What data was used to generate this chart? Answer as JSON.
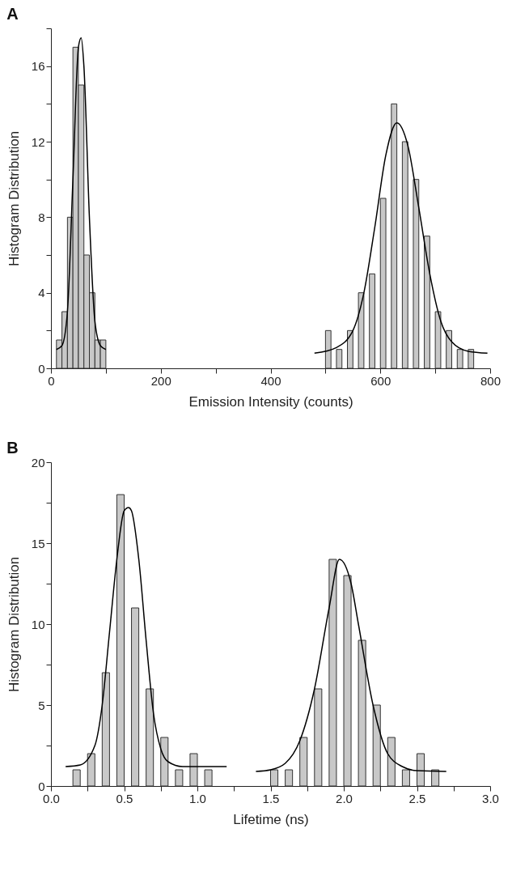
{
  "chart_data": [
    {
      "type": "histogram",
      "title": "A",
      "xlabel": "Emission Intensity (counts)",
      "ylabel": "Histogram Distribution",
      "color": "#c8c8c8",
      "bins": [
        10,
        20,
        30,
        40,
        50,
        60,
        70,
        80,
        90,
        100,
        500,
        510,
        520,
        530,
        540,
        550,
        560,
        570,
        580,
        590,
        600,
        610,
        620,
        630,
        640,
        650,
        660,
        670,
        680,
        690,
        700,
        710,
        720,
        730,
        740,
        750,
        760,
        770
      ],
      "values": [
        1.5,
        3,
        8,
        17,
        15,
        6,
        4,
        1.5,
        1.5,
        null,
        2,
        null,
        1,
        null,
        2,
        null,
        4,
        null,
        5,
        null,
        9,
        null,
        14,
        null,
        12,
        null,
        10,
        null,
        7,
        null,
        3,
        null,
        2,
        null,
        1,
        null,
        1
      ],
      "xlim": [
        0,
        800
      ],
      "ylim": [
        0,
        18
      ],
      "xticks": [
        0,
        {
          "value": 100,
          "label": null
        },
        200,
        {
          "value": 300,
          "label": null
        },
        400,
        {
          "value": 500,
          "label": null
        },
        600,
        {
          "value": 700,
          "label": null
        },
        800
      ],
      "yticks": [
        0,
        {
          "value": 2,
          "label": null
        },
        4,
        {
          "value": 6,
          "label": null
        },
        8,
        {
          "value": 10,
          "label": null
        },
        12,
        {
          "value": 14,
          "label": null
        },
        16,
        {
          "value": 18,
          "label": null
        }
      ],
      "series": [
        {
          "type": "line",
          "color": "#000000",
          "x": [
            10,
            20,
            30,
            40,
            50,
            55,
            60,
            70,
            80,
            90,
            100
          ],
          "values": [
            1.0,
            1.2,
            3,
            10,
            17,
            17.5,
            16,
            8,
            2.5,
            1.2,
            1.0
          ]
        },
        {
          "type": "line",
          "color": "#000000",
          "x": [
            480,
            520,
            550,
            570,
            590,
            610,
            630,
            650,
            670,
            690,
            710,
            730,
            760,
            795
          ],
          "values": [
            0.8,
            1.1,
            2,
            4,
            7.5,
            11.3,
            13,
            11.8,
            8.5,
            5,
            2.5,
            1.4,
            0.9,
            0.8
          ]
        }
      ]
    },
    {
      "type": "histogram",
      "title": "B",
      "xlabel": "Lifetime (ns)",
      "ylabel": "Histogram Distribution",
      "color": "#c8c8c8",
      "bins": [
        0.15,
        0.2,
        0.25,
        0.3,
        0.35,
        0.4,
        0.45,
        0.5,
        0.55,
        0.6,
        0.65,
        0.7,
        0.75,
        0.8,
        0.85,
        0.9,
        0.95,
        1.0,
        1.05,
        1.1,
        1.5,
        1.55,
        1.6,
        1.65,
        1.7,
        1.75,
        1.8,
        1.85,
        1.9,
        1.95,
        2.0,
        2.05,
        2.1,
        2.15,
        2.2,
        2.25,
        2.3,
        2.35,
        2.4,
        2.45,
        2.5,
        2.55,
        2.6,
        2.65
      ],
      "values": [
        1,
        null,
        2,
        null,
        7,
        null,
        18,
        null,
        11,
        null,
        6,
        null,
        3,
        null,
        1,
        null,
        2,
        null,
        1,
        null,
        1,
        null,
        1,
        null,
        3,
        null,
        6,
        null,
        14,
        null,
        13,
        null,
        9,
        null,
        5,
        null,
        3,
        null,
        1,
        null,
        2,
        null,
        1
      ],
      "xlim": [
        0,
        3
      ],
      "ylim": [
        0,
        20
      ],
      "xticks": [
        {
          "value": 0,
          "label": "0.0"
        },
        {
          "value": 0.25,
          "label": null
        },
        0.5,
        {
          "value": 0.75,
          "label": null
        },
        {
          "value": 1,
          "label": "1.0"
        },
        {
          "value": 1.25,
          "label": null
        },
        1.5,
        {
          "value": 1.75,
          "label": null
        },
        {
          "value": 2,
          "label": "2.0"
        },
        {
          "value": 2.25,
          "label": null
        },
        2.5,
        {
          "value": 2.75,
          "label": null
        },
        {
          "value": 3,
          "label": "3.0"
        }
      ],
      "yticks": [
        0,
        {
          "value": 2.5,
          "label": null
        },
        5,
        {
          "value": 7.5,
          "label": null
        },
        10,
        {
          "value": 12.5,
          "label": null
        },
        15,
        {
          "value": 17.5,
          "label": null
        },
        20
      ],
      "series": [
        {
          "type": "line",
          "color": "#000000",
          "x": [
            0.1,
            0.2,
            0.3,
            0.35,
            0.4,
            0.45,
            0.5,
            0.53,
            0.55,
            0.6,
            0.65,
            0.7,
            0.75,
            0.8,
            0.9,
            1.2
          ],
          "values": [
            1.2,
            1.3,
            2.5,
            5,
            9.5,
            14,
            17,
            17.2,
            17,
            14,
            9,
            4.5,
            2.3,
            1.5,
            1.2,
            1.2
          ]
        },
        {
          "type": "line",
          "color": "#000000",
          "x": [
            1.4,
            1.5,
            1.6,
            1.7,
            1.8,
            1.9,
            1.97,
            2.05,
            2.1,
            2.2,
            2.3,
            2.4,
            2.5,
            2.7
          ],
          "values": [
            0.9,
            1.0,
            1.4,
            2.8,
            6,
            11,
            14,
            12.5,
            10,
            5,
            2,
            1.2,
            0.95,
            0.9
          ]
        }
      ]
    }
  ]
}
